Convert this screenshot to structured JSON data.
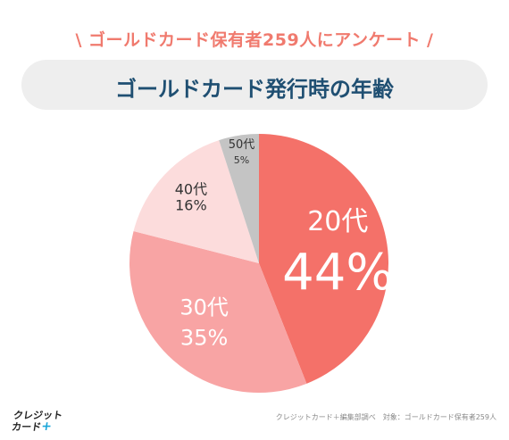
{
  "header": {
    "survey_tag": "\\ ゴールドカード保有者259人にアンケート /",
    "title": "ゴールドカード発行時の年齢"
  },
  "chart_data": {
    "type": "pie",
    "title": "ゴールドカード発行時の年齢",
    "slices": [
      {
        "label": "20代",
        "value": 44,
        "value_label": "44%",
        "color": "#f47169"
      },
      {
        "label": "30代",
        "value": 35,
        "value_label": "35%",
        "color": "#f8a4a4"
      },
      {
        "label": "40代",
        "value": 16,
        "value_label": "16%",
        "color": "#fcdcdc"
      },
      {
        "label": "50代",
        "value": 5,
        "value_label": "5%",
        "color": "#c4c4c4"
      }
    ]
  },
  "footer": {
    "logo_line1": "クレジット",
    "logo_line2": "カード",
    "logo_plus": "+",
    "source": "クレジットカード＋編集部調べ　対象：ゴールドカード保有者259人"
  }
}
